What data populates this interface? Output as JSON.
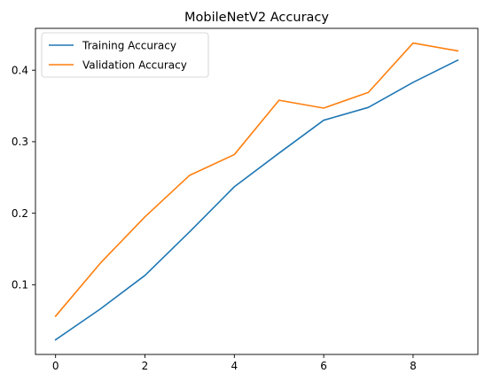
{
  "chart_data": {
    "type": "line",
    "title": "MobileNetV2 Accuracy",
    "xlabel": "",
    "ylabel": "",
    "xlim": [
      -0.45,
      9.45
    ],
    "ylim": [
      0.0025,
      0.4585
    ],
    "x_ticks": [
      0,
      2,
      4,
      6,
      8
    ],
    "y_ticks": [
      0.1,
      0.2,
      0.3,
      0.4
    ],
    "x_tick_labels": [
      "0",
      "2",
      "4",
      "6",
      "8"
    ],
    "y_tick_labels": [
      "0.1",
      "0.2",
      "0.3",
      "0.4"
    ],
    "x": [
      0,
      1,
      2,
      3,
      4,
      5,
      6,
      7,
      8,
      9
    ],
    "series": [
      {
        "name": "Training Accuracy",
        "color": "#1f77b4",
        "values": [
          0.023,
          0.066,
          0.113,
          0.174,
          0.237,
          0.284,
          0.33,
          0.348,
          0.383,
          0.414
        ]
      },
      {
        "name": "Validation Accuracy",
        "color": "#ff7f0e",
        "values": [
          0.056,
          0.13,
          0.195,
          0.253,
          0.282,
          0.358,
          0.347,
          0.369,
          0.438,
          0.427
        ]
      }
    ],
    "grid": false,
    "legend_position": "top-left"
  }
}
